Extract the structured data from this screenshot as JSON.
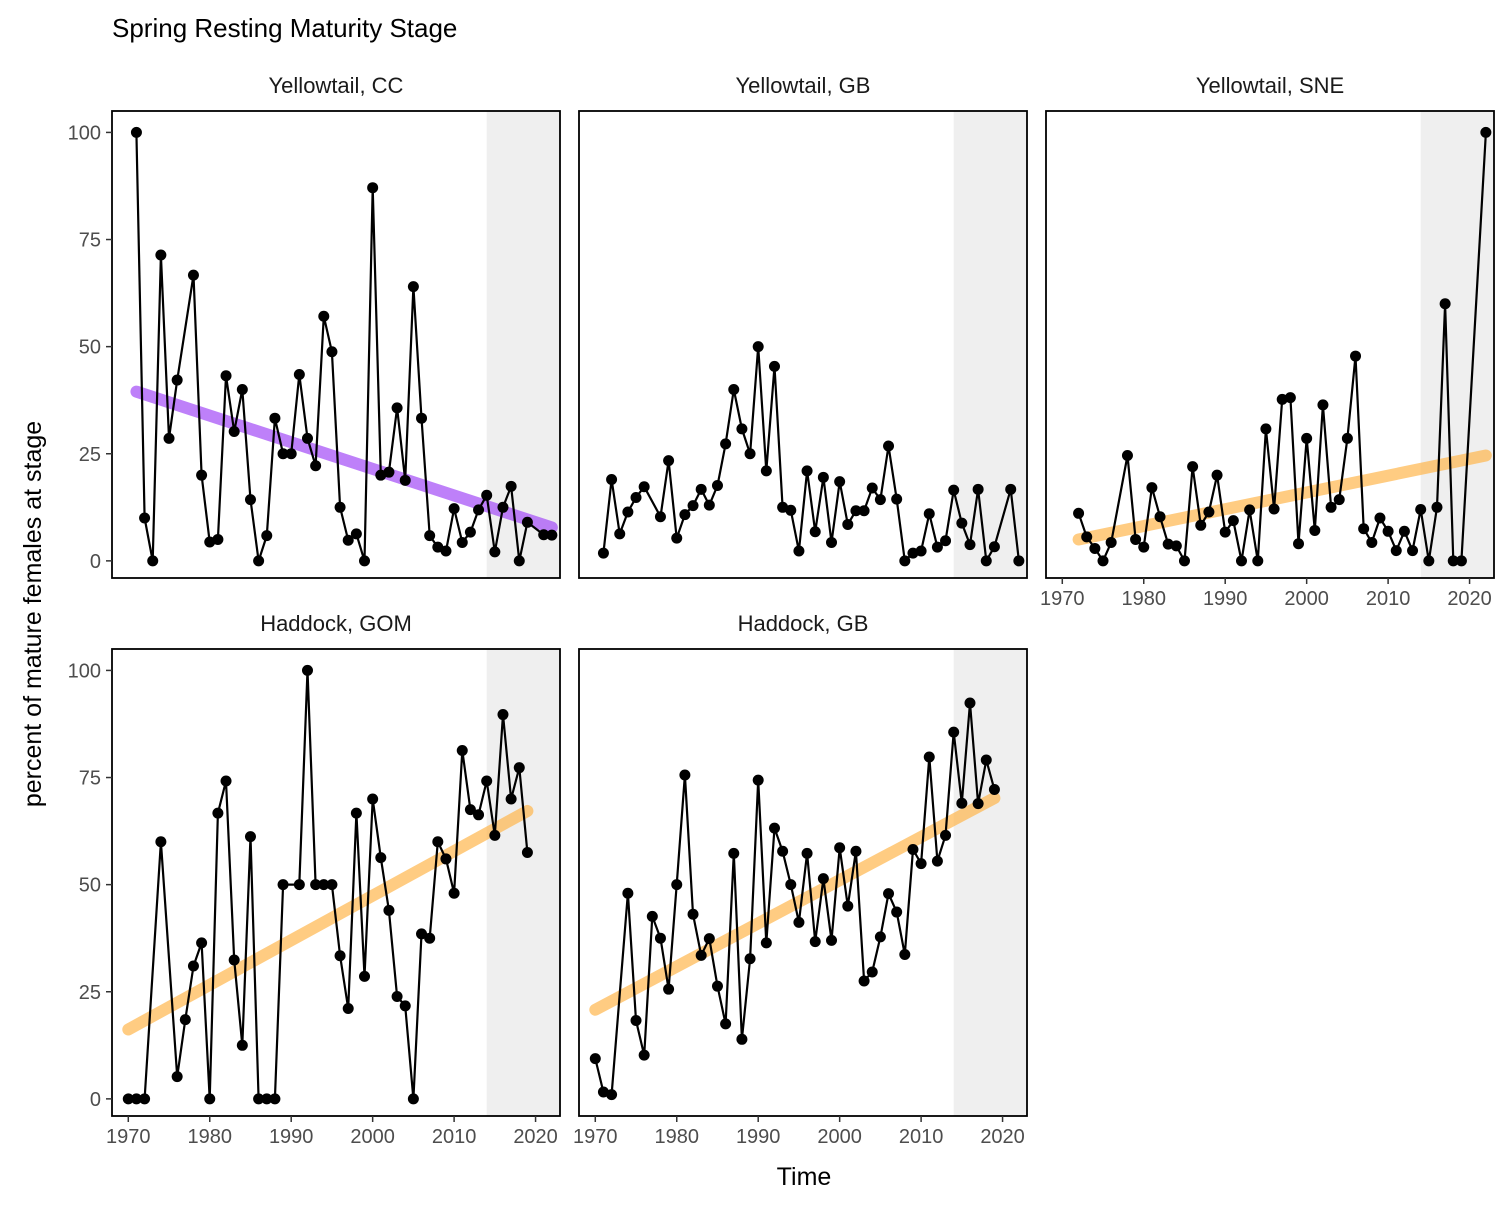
{
  "chart_data": {
    "type": "line",
    "title": "Spring Resting Maturity Stage",
    "xlabel": "Time",
    "ylabel": "percent of mature females at stage",
    "xlim": [
      1968,
      2023
    ],
    "ylim": [
      -4,
      105
    ],
    "x_ticks": [
      1970,
      1980,
      1990,
      2000,
      2010,
      2020
    ],
    "y_ticks": [
      0,
      25,
      50,
      75,
      100
    ],
    "shade_range": [
      2014,
      2023
    ],
    "colors": {
      "line": "#000000",
      "point": "#000000",
      "trend_decreasing": "#a855f7",
      "trend_increasing": "#ffb74d",
      "shade": "#efefef"
    },
    "panels": [
      {
        "label": "Yellowtail, CC",
        "x": [
          1971,
          1972,
          1973,
          1974,
          1975,
          1976,
          1978,
          1979,
          1980,
          1981,
          1982,
          1983,
          1984,
          1985,
          1986,
          1987,
          1988,
          1989,
          1990,
          1991,
          1992,
          1993,
          1994,
          1995,
          1996,
          1997,
          1998,
          1999,
          2000,
          2001,
          2002,
          2003,
          2004,
          2005,
          2006,
          2007,
          2008,
          2009,
          2010,
          2011,
          2012,
          2013,
          2014,
          2015,
          2016,
          2017,
          2018,
          2019,
          2021,
          2022
        ],
        "y": [
          100,
          10,
          0,
          71.4,
          28.6,
          42.2,
          66.7,
          20,
          4.4,
          5,
          43.2,
          30.2,
          40,
          14.3,
          0,
          5.9,
          33.3,
          25,
          25,
          43.5,
          28.6,
          22.2,
          57.1,
          48.8,
          12.5,
          4.8,
          6.3,
          0,
          87.1,
          20,
          20.7,
          35.7,
          18.8,
          64,
          33.3,
          5.9,
          3.2,
          2.3,
          12.2,
          4.3,
          6.7,
          11.9,
          15.3,
          2.1,
          12.5,
          17.4,
          0,
          9,
          6.1,
          6
        ],
        "trend": {
          "direction": "decreasing",
          "x": [
            1971,
            2022
          ],
          "y": [
            39.5,
            7.8
          ]
        }
      },
      {
        "label": "Yellowtail, GB",
        "x": [
          1971,
          1972,
          1973,
          1974,
          1975,
          1976,
          1978,
          1979,
          1980,
          1981,
          1982,
          1983,
          1984,
          1985,
          1986,
          1987,
          1988,
          1989,
          1990,
          1991,
          1992,
          1993,
          1994,
          1995,
          1996,
          1997,
          1998,
          1999,
          2000,
          2001,
          2002,
          2003,
          2004,
          2005,
          2006,
          2007,
          2008,
          2009,
          2010,
          2011,
          2012,
          2013,
          2014,
          2015,
          2016,
          2017,
          2018,
          2019,
          2021,
          2022
        ],
        "y": [
          1.8,
          19,
          6.3,
          11.4,
          14.8,
          17.3,
          10.3,
          23.4,
          5.3,
          10.8,
          12.9,
          16.7,
          13,
          17.6,
          27.3,
          40,
          30.8,
          25,
          50,
          21,
          45.4,
          12.5,
          11.8,
          2.3,
          21,
          6.8,
          19.5,
          4.3,
          18.5,
          8.5,
          11.7,
          11.7,
          17,
          14.3,
          26.8,
          14.4,
          0,
          1.8,
          2.3,
          11,
          3.2,
          4.7,
          16.5,
          8.8,
          3.8,
          16.7,
          0,
          3.3,
          16.7,
          0
        ],
        "trend": null
      },
      {
        "label": "Yellowtail, SNE",
        "x": [
          1972,
          1973,
          1974,
          1975,
          1976,
          1978,
          1979,
          1980,
          1981,
          1982,
          1983,
          1984,
          1985,
          1986,
          1987,
          1988,
          1989,
          1990,
          1991,
          1992,
          1993,
          1994,
          1995,
          1996,
          1997,
          1998,
          1999,
          2000,
          2001,
          2002,
          2003,
          2004,
          2005,
          2006,
          2007,
          2008,
          2009,
          2010,
          2011,
          2012,
          2013,
          2014,
          2015,
          2016,
          2017,
          2018,
          2019,
          2022
        ],
        "y": [
          11.1,
          5.6,
          2.9,
          0,
          4.3,
          24.6,
          5,
          3.2,
          17.1,
          10.3,
          3.9,
          3.5,
          0,
          22,
          8.3,
          11.4,
          20,
          6.7,
          9.4,
          0,
          11.9,
          0,
          30.8,
          12.1,
          37.7,
          38.1,
          4,
          28.6,
          7.1,
          36.4,
          12.5,
          14.3,
          28.6,
          47.8,
          7.5,
          4.3,
          10,
          6.9,
          2.4,
          6.9,
          2.4,
          12,
          0,
          12.5,
          60,
          0,
          0,
          100
        ],
        "trend": {
          "direction": "increasing",
          "x": [
            1972,
            2022
          ],
          "y": [
            5,
            24.6
          ]
        }
      },
      {
        "label": "Haddock, GOM",
        "x": [
          1970,
          1971,
          1972,
          1974,
          1976,
          1977,
          1978,
          1979,
          1980,
          1981,
          1982,
          1983,
          1984,
          1985,
          1986,
          1987,
          1988,
          1989,
          1991,
          1992,
          1993,
          1994,
          1995,
          1996,
          1997,
          1998,
          1999,
          2000,
          2001,
          2002,
          2003,
          2004,
          2005,
          2006,
          2007,
          2008,
          2009,
          2010,
          2011,
          2012,
          2013,
          2014,
          2015,
          2016,
          2017,
          2018,
          2019
        ],
        "y": [
          0,
          0,
          0,
          60,
          5.2,
          18.5,
          31,
          36.4,
          0,
          66.7,
          74.2,
          32.4,
          12.5,
          61.2,
          0,
          0,
          0,
          50,
          50,
          100,
          50,
          50,
          50,
          33.4,
          21.1,
          66.7,
          28.6,
          70,
          56.3,
          44,
          23.9,
          21.7,
          0,
          38.5,
          37.5,
          60,
          56,
          48,
          81.3,
          67.5,
          66.3,
          74.2,
          61.5,
          89.7,
          70,
          77.3,
          57.5
        ],
        "trend": {
          "direction": "increasing",
          "x": [
            1970,
            2019
          ],
          "y": [
            16.2,
            67.2
          ]
        }
      },
      {
        "label": "Haddock, GB",
        "x": [
          1970,
          1971,
          1972,
          1974,
          1975,
          1976,
          1977,
          1978,
          1979,
          1980,
          1981,
          1982,
          1983,
          1984,
          1985,
          1986,
          1987,
          1988,
          1989,
          1990,
          1991,
          1992,
          1993,
          1994,
          1995,
          1996,
          1997,
          1998,
          1999,
          2000,
          2001,
          2002,
          2003,
          2004,
          2005,
          2006,
          2007,
          2008,
          2009,
          2010,
          2011,
          2012,
          2013,
          2014,
          2015,
          2016,
          2017,
          2018,
          2019
        ],
        "y": [
          9.4,
          1.6,
          1,
          48,
          18.3,
          10.2,
          42.6,
          37.5,
          25.6,
          50,
          75.6,
          43.1,
          33.5,
          37.4,
          26.3,
          17.5,
          57.3,
          13.9,
          32.7,
          74.4,
          36.4,
          63.2,
          57.8,
          50,
          41.2,
          57.3,
          36.7,
          51.4,
          37,
          58.6,
          45,
          57.8,
          27.5,
          29.6,
          37.8,
          47.9,
          43.6,
          33.7,
          58.2,
          54.9,
          79.8,
          55.5,
          61.5,
          85.6,
          69,
          92.4,
          68.9,
          79.1,
          72.2
        ],
        "trend": {
          "direction": "increasing",
          "x": [
            1970,
            2019
          ],
          "y": [
            20.8,
            70.2
          ]
        }
      }
    ]
  }
}
